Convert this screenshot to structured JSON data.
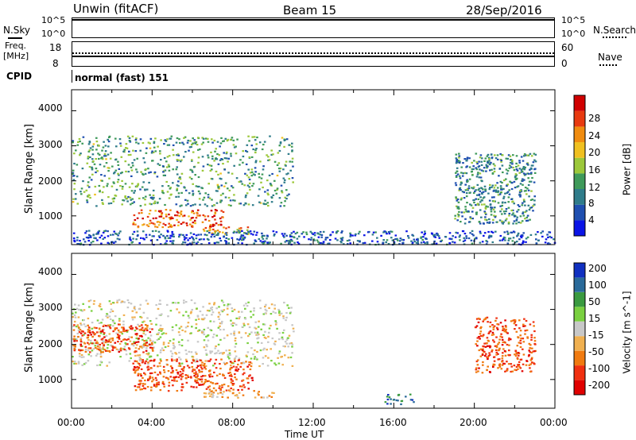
{
  "header": {
    "station": "Unwin (fitACF)",
    "beam": "Beam 15",
    "date": "28/Sep/2016"
  },
  "strip": {
    "nsky_label": "N.Sky",
    "nsky_ticks": [
      "10^5",
      "10^0"
    ],
    "nsearch_label": "N.Search",
    "nsearch_ticks": [
      "10^5",
      "10^0"
    ],
    "freq_label_1": "Freq.",
    "freq_label_2": "[MHz]",
    "freq_ticks": [
      "18",
      "8"
    ],
    "nave_label": "Nave",
    "nave_ticks": [
      "60",
      "0"
    ],
    "cpid_label": "CPID",
    "cpid_value": "normal (fast) 151"
  },
  "axes": {
    "ylabel": "Slant Range [km]",
    "xlabel": "Time UT",
    "y_ticks": [
      "1000",
      "2000",
      "3000",
      "4000"
    ],
    "x_ticks": [
      "00:00",
      "04:00",
      "08:00",
      "12:00",
      "16:00",
      "20:00",
      "00:00"
    ]
  },
  "power_bar": {
    "label": "Power [dB]",
    "ticks": [
      "4",
      "8",
      "12",
      "16",
      "20",
      "24",
      "28"
    ],
    "colors": [
      "#0a14e6",
      "#1f4fb0",
      "#2f7c8a",
      "#3f9a5a",
      "#9cc83a",
      "#f0c020",
      "#f08c10",
      "#e83a10",
      "#d00000"
    ]
  },
  "velocity_bar": {
    "label": "Velocity [m s^-1]",
    "ticks": [
      "-200",
      "-100",
      "-50",
      "-15",
      "15",
      "50",
      "100",
      "200"
    ],
    "colors": [
      "#e00000",
      "#f03010",
      "#f07a10",
      "#f0b050",
      "#c8c8c8",
      "#7ad040",
      "#3a9a40",
      "#2a6a9a",
      "#1030c0"
    ]
  },
  "chart_data": [
    {
      "type": "heatmap",
      "title": "Power",
      "xlabel": "Time UT",
      "ylabel": "Slant Range [km]",
      "xlim": [
        0,
        24
      ],
      "ylim": [
        180,
        4600
      ],
      "colorbar_label": "Power [dB]",
      "colorbar_range": [
        0,
        32
      ],
      "regions": [
        {
          "t_start": 0.0,
          "t_end": 11.0,
          "r_min": 1300,
          "r_max": 3300,
          "value": 12
        },
        {
          "t_start": 3.0,
          "t_end": 7.5,
          "r_min": 700,
          "r_max": 1200,
          "value": 26
        },
        {
          "t_start": 6.5,
          "t_end": 9.0,
          "r_min": 500,
          "r_max": 700,
          "value": 22
        },
        {
          "t_start": 0.0,
          "t_end": 24.0,
          "r_min": 200,
          "r_max": 600,
          "value": 6
        },
        {
          "t_start": 19.0,
          "t_end": 23.0,
          "r_min": 800,
          "r_max": 2800,
          "value": 10
        }
      ]
    },
    {
      "type": "heatmap",
      "title": "Velocity",
      "xlabel": "Time UT",
      "ylabel": "Slant Range [km]",
      "xlim": [
        0,
        24
      ],
      "ylim": [
        180,
        4600
      ],
      "colorbar_label": "Velocity [m s^-1]",
      "colorbar_range": [
        -250,
        250
      ],
      "regions": [
        {
          "t_start": 0.0,
          "t_end": 11.0,
          "r_min": 1400,
          "r_max": 3300,
          "value": 0
        },
        {
          "t_start": 0.0,
          "t_end": 4.0,
          "r_min": 1800,
          "r_max": 2600,
          "value": -150
        },
        {
          "t_start": 3.0,
          "t_end": 9.0,
          "r_min": 700,
          "r_max": 1600,
          "value": -150
        },
        {
          "t_start": 6.5,
          "t_end": 10.0,
          "r_min": 500,
          "r_max": 700,
          "value": -60
        },
        {
          "t_start": 15.5,
          "t_end": 17.0,
          "r_min": 300,
          "r_max": 600,
          "value": 150
        },
        {
          "t_start": 20.0,
          "t_end": 23.0,
          "r_min": 1200,
          "r_max": 2800,
          "value": -150
        }
      ]
    }
  ]
}
